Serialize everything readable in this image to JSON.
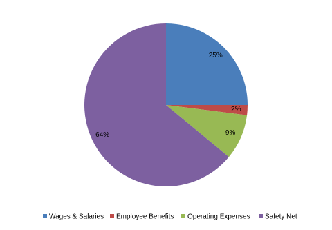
{
  "chart_data": {
    "type": "pie",
    "categories": [
      "Wages & Salaries",
      "Employee Benefits",
      "Operating Expenses",
      "Safety Net"
    ],
    "values": [
      25,
      2,
      9,
      64
    ],
    "value_labels": [
      "25%",
      "2%",
      "9%",
      "64%"
    ],
    "colors": [
      "#4a7ebb",
      "#be4b48",
      "#98b954",
      "#7d60a0"
    ],
    "legend": "bottom"
  }
}
